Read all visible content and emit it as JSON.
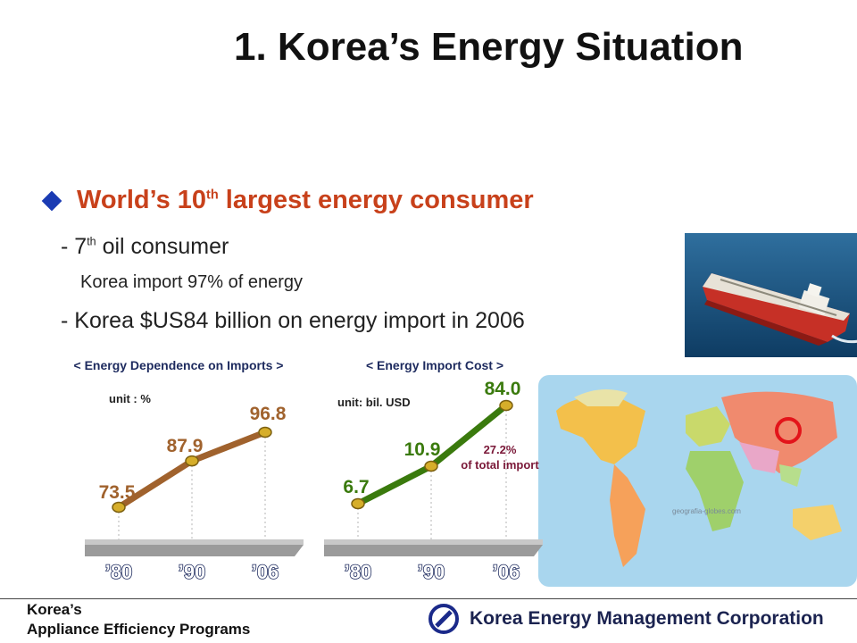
{
  "title": "1. Korea’s Energy Situation",
  "bullet": {
    "text": "World’s 10",
    "sup": "th",
    "rest": " largest energy consumer"
  },
  "sub1": {
    "pre": "- 7",
    "sup": "th",
    "post": " oil consumer"
  },
  "sub2": "Korea import 97% of energy",
  "sub3": "- Korea $US84 billion on energy import in 2006",
  "colors": {
    "bullet_text": "#c8411b",
    "diamond": "#1a3bb3",
    "series1": "#a0622d",
    "series2": "#3a7a0d",
    "annotation": "#7a1838"
  },
  "chart_data": [
    {
      "type": "line",
      "title": "< Energy Dependence on Imports >",
      "unit": "unit : %",
      "categories": [
        "’80",
        "’90",
        "’06"
      ],
      "values": [
        73.5,
        87.9,
        96.8
      ],
      "value_labels": [
        "73.5",
        "87.9",
        "96.8"
      ]
    },
    {
      "type": "line",
      "title": "< Energy Import Cost >",
      "unit": "unit: bil. USD",
      "categories": [
        "’80",
        "’90",
        "’06"
      ],
      "values": [
        6.7,
        10.9,
        84.0
      ],
      "value_labels": [
        "6.7",
        "10.9",
        "84.0"
      ],
      "annotation": [
        "27.2%",
        "of total import"
      ]
    }
  ],
  "map": {
    "watermark": "geografia-globes.com"
  },
  "footer": {
    "line1": "Korea’s",
    "line2": "Appliance Efficiency Programs"
  },
  "corp": {
    "name": "Korea Energy Management Corporation"
  }
}
